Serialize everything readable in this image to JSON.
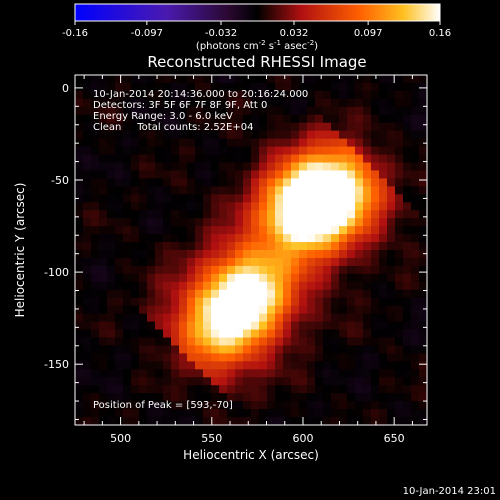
{
  "chart_data": {
    "type": "heatmap",
    "title": "Reconstructed RHESSI Image",
    "xlabel": "Heliocentric X (arcsec)",
    "ylabel": "Heliocentric Y (arcsec)",
    "xlim": [
      475,
      668
    ],
    "ylim": [
      -183,
      7
    ],
    "x_ticks": [
      500,
      550,
      600,
      650
    ],
    "y_ticks": [
      0,
      -50,
      -100,
      -150
    ],
    "colorbar": {
      "min": -0.16,
      "max": 0.16,
      "ticks": [
        "-0.16",
        "-0.097",
        "-0.032",
        "0.032",
        "0.097",
        "0.16"
      ],
      "unit_label": "(photons cm-2 s-1 asec-2)",
      "unit_parts": [
        "(photons cm",
        "-2",
        " s",
        "-1",
        " asec",
        "-2",
        ")"
      ]
    },
    "annotations": [
      "10-Jan-2014 20:14:36.000 to 20:16:24.000",
      "Detectors: 3F 5F 6F 7F 8F 9F, Att 0",
      "Energy Range: 3.0 - 6.0 keV",
      "Clean     Total counts: 2.52E+04"
    ],
    "peak_label": "Position of Peak = [593,-70]",
    "peak_position": [
      593,
      -70
    ],
    "sources": [
      {
        "x": 600,
        "y": -66,
        "intensity": 1.0
      },
      {
        "x": 618,
        "y": -56,
        "intensity": 0.75
      },
      {
        "x": 570,
        "y": -112,
        "intensity": 0.85
      },
      {
        "x": 555,
        "y": -130,
        "intensity": 0.55
      }
    ]
  },
  "footer": {
    "timestamp": "10-Jan-2014 23:01"
  }
}
